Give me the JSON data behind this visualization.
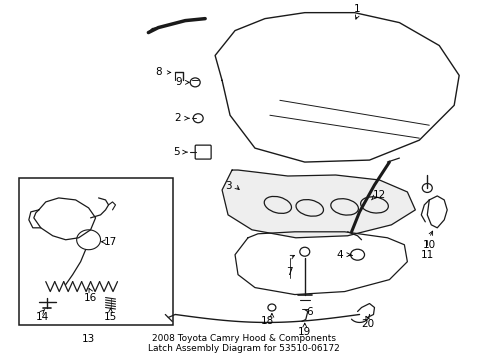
{
  "title": "2008 Toyota Camry Hood & Components\nLatch Assembly Diagram for 53510-06172",
  "bg_color": "#ffffff",
  "line_color": "#1a1a1a",
  "title_fontsize": 6.5,
  "label_fontsize": 7.5
}
